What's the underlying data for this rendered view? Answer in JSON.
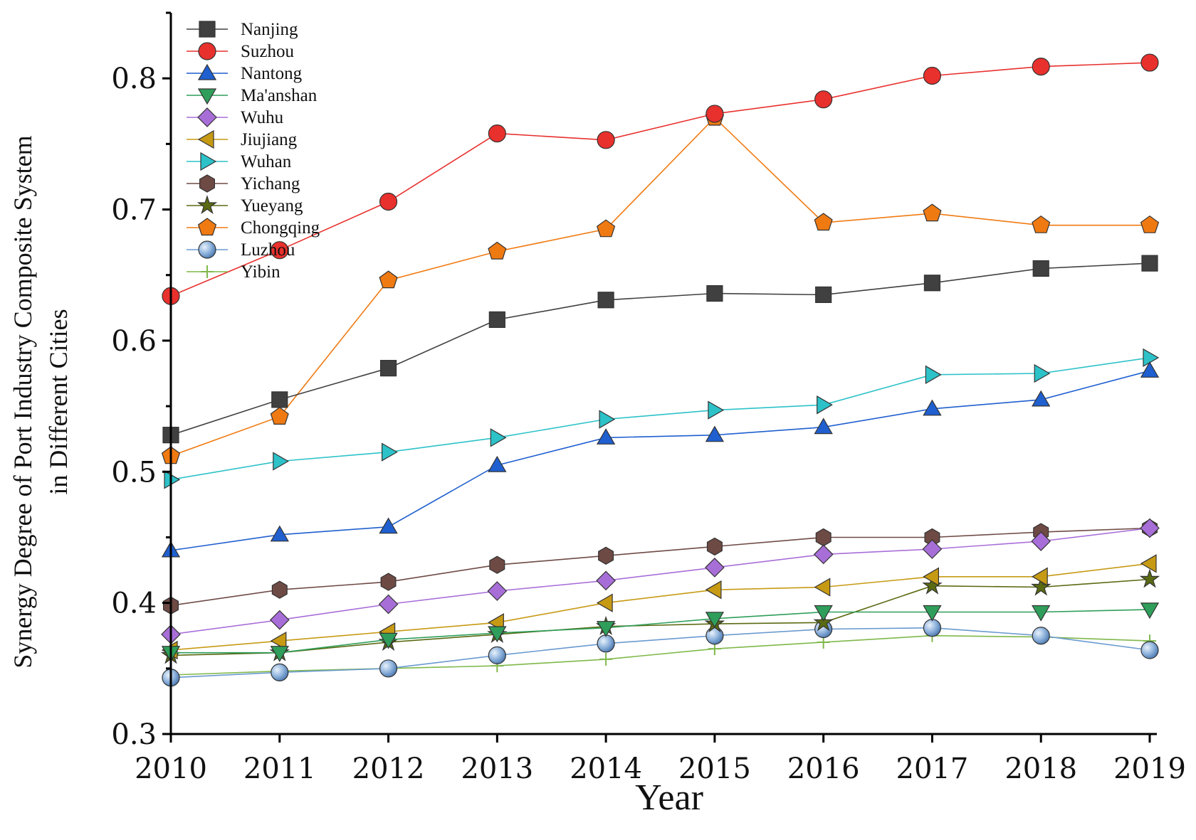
{
  "chart_data": {
    "type": "line",
    "title": "",
    "xlabel": "Year",
    "ylabel_lines": [
      "Synergy Degree of Port Industry Composite System",
      "in Different Cities"
    ],
    "x": [
      2010,
      2011,
      2012,
      2013,
      2014,
      2015,
      2016,
      2017,
      2018,
      2019
    ],
    "x_tick_labels": [
      "2010",
      "2011",
      "2012",
      "2013",
      "2014",
      "2015",
      "2016",
      "2017",
      "2018",
      "2019"
    ],
    "ylim": [
      0.3,
      0.85
    ],
    "y_ticks": [
      0.3,
      0.4,
      0.5,
      0.6,
      0.7,
      0.8
    ],
    "y_tick_labels": [
      "0.3",
      "0.4",
      "0.5",
      "0.6",
      "0.7",
      "0.8"
    ],
    "legend_position": "top-left",
    "series": [
      {
        "name": "Nanjing",
        "marker": "square",
        "color": "#404040",
        "values": [
          0.528,
          0.555,
          0.579,
          0.616,
          0.631,
          0.636,
          0.635,
          0.644,
          0.655,
          0.659
        ]
      },
      {
        "name": "Suzhou",
        "marker": "circle",
        "color": "#e8302d",
        "values": [
          0.634,
          0.669,
          0.706,
          0.758,
          0.753,
          0.773,
          0.784,
          0.802,
          0.809,
          0.812
        ]
      },
      {
        "name": "Nantong",
        "marker": "triangle-up",
        "color": "#1f5fcf",
        "values": [
          0.44,
          0.452,
          0.458,
          0.505,
          0.526,
          0.528,
          0.534,
          0.548,
          0.555,
          0.577
        ]
      },
      {
        "name": "Ma'anshan",
        "marker": "triangle-down",
        "color": "#2f9e5a",
        "values": [
          0.362,
          0.362,
          0.372,
          0.377,
          0.381,
          0.388,
          0.393,
          0.393,
          0.393,
          0.395
        ]
      },
      {
        "name": "Wuhu",
        "marker": "diamond",
        "color": "#a86ed8",
        "values": [
          0.376,
          0.387,
          0.399,
          0.409,
          0.417,
          0.427,
          0.437,
          0.441,
          0.447,
          0.457
        ]
      },
      {
        "name": "Jiujiang",
        "marker": "triangle-left",
        "color": "#c79a14",
        "values": [
          0.364,
          0.371,
          0.378,
          0.385,
          0.4,
          0.41,
          0.412,
          0.42,
          0.42,
          0.43
        ]
      },
      {
        "name": "Wuhan",
        "marker": "triangle-right",
        "color": "#2cc2c8",
        "values": [
          0.494,
          0.508,
          0.515,
          0.526,
          0.54,
          0.547,
          0.551,
          0.574,
          0.575,
          0.587
        ]
      },
      {
        "name": "Yichang",
        "marker": "hexagon",
        "color": "#6e4a45",
        "values": [
          0.398,
          0.41,
          0.416,
          0.429,
          0.436,
          0.443,
          0.45,
          0.45,
          0.454,
          0.457
        ]
      },
      {
        "name": "Yueyang",
        "marker": "star",
        "color": "#5a6a12",
        "values": [
          0.36,
          0.362,
          0.37,
          0.376,
          0.382,
          0.384,
          0.385,
          0.413,
          0.412,
          0.418
        ]
      },
      {
        "name": "Chongqing",
        "marker": "pentagon",
        "color": "#f07a12",
        "values": [
          0.512,
          0.542,
          0.646,
          0.668,
          0.685,
          0.77,
          0.69,
          0.697,
          0.688,
          0.688
        ]
      },
      {
        "name": "Luzhou",
        "marker": "sphere",
        "color": "#6a9ad0",
        "values": [
          0.343,
          0.347,
          0.35,
          0.36,
          0.369,
          0.375,
          0.38,
          0.381,
          0.375,
          0.364
        ]
      },
      {
        "name": "Yibin",
        "marker": "plus",
        "color": "#7fb84a",
        "values": [
          0.345,
          0.348,
          0.35,
          0.352,
          0.357,
          0.365,
          0.37,
          0.375,
          0.374,
          0.371
        ]
      }
    ]
  }
}
